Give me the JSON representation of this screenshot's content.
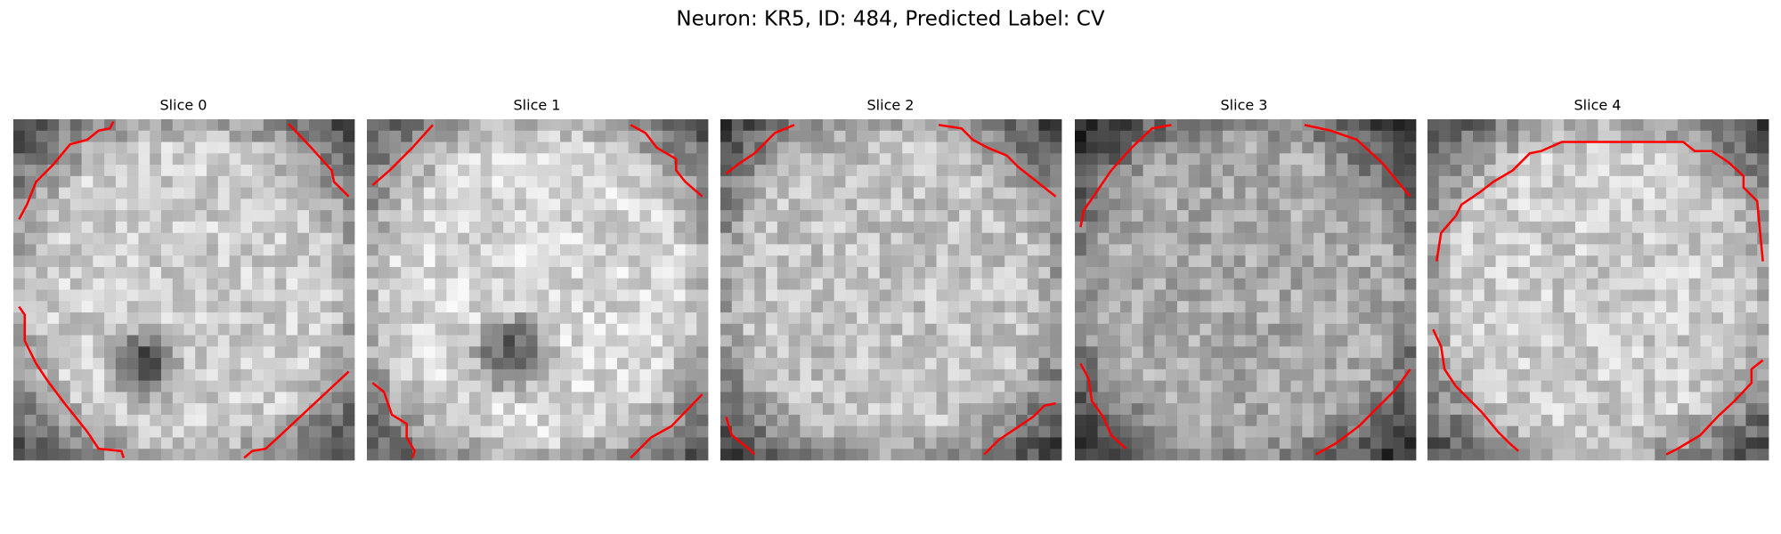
{
  "header": {
    "title": "Neuron: KR5, ID: 484, Predicted Label: CV"
  },
  "panels": [
    {
      "title": "Slice 0"
    },
    {
      "title": "Slice 1"
    },
    {
      "title": "Slice 2"
    },
    {
      "title": "Slice 3"
    },
    {
      "title": "Slice 4"
    }
  ]
}
